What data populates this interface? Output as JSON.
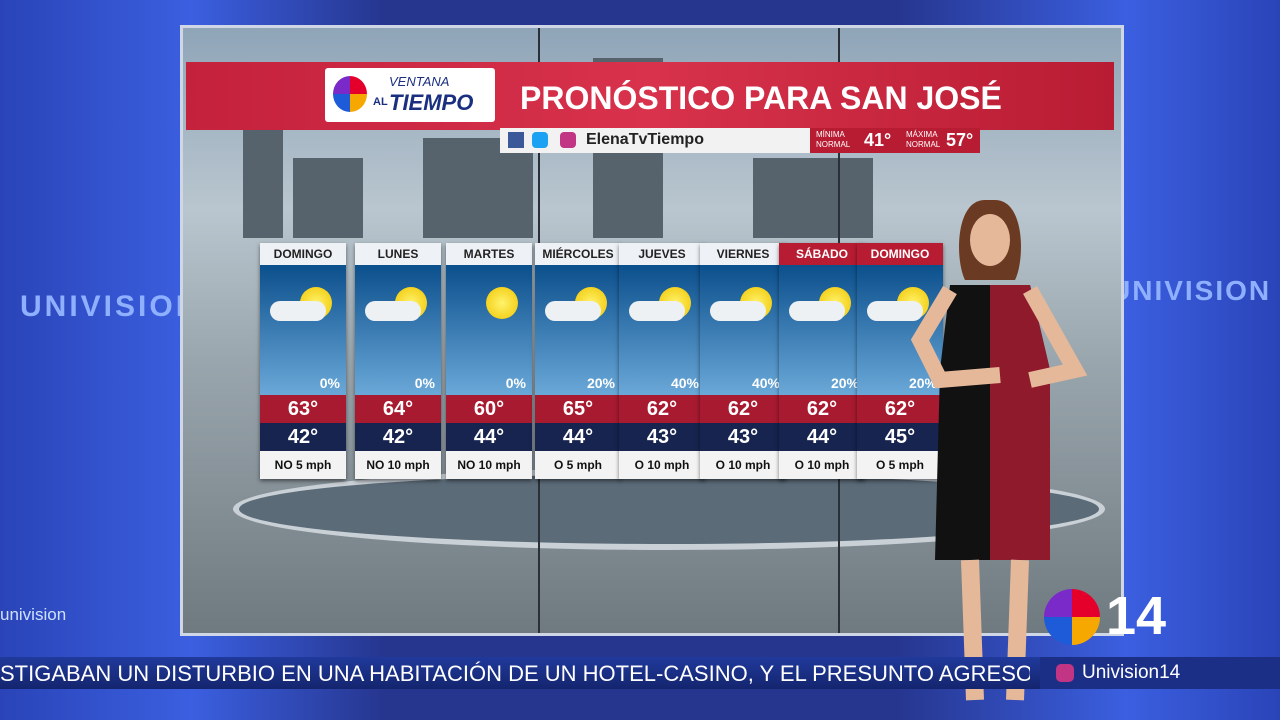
{
  "header": {
    "logo_top": "VENTANA",
    "logo_al": "AL",
    "logo_main": "TIEMPO",
    "title": "PRONÓSTICO PARA SAN JOSÉ",
    "social": "ElenaTvTiempo",
    "min_label": "MÍNIMA NORMAL",
    "min_value": "41°",
    "max_label": "MÁXIMA NORMAL",
    "max_value": "57°"
  },
  "days": [
    {
      "day": "DOMINGO",
      "precip": "0%",
      "high": "63°",
      "low": "42°",
      "wind": "NO 5 mph"
    },
    {
      "day": "LUNES",
      "precip": "0%",
      "high": "64°",
      "low": "42°",
      "wind": "NO 10 mph"
    },
    {
      "day": "MARTES",
      "precip": "0%",
      "high": "60°",
      "low": "44°",
      "wind": "NO 10 mph"
    },
    {
      "day": "MIÉRCOLES",
      "precip": "20%",
      "high": "65°",
      "low": "44°",
      "wind": "O 5 mph"
    },
    {
      "day": "JUEVES",
      "precip": "40%",
      "high": "62°",
      "low": "43°",
      "wind": "O 10 mph"
    },
    {
      "day": "VIERNES",
      "precip": "40%",
      "high": "62°",
      "low": "43°",
      "wind": "O 10 mph"
    },
    {
      "day": "SÁBADO",
      "precip": "20%",
      "high": "62°",
      "low": "44°",
      "wind": "O 10 mph"
    },
    {
      "day": "DOMINGO",
      "precip": "20%",
      "high": "62°",
      "low": "45°",
      "wind": "O 5 mph"
    }
  ],
  "background": {
    "brand_left": "UNIVISION",
    "brand_right": "UNIVISION",
    "brand_small": "univision"
  },
  "station": {
    "number": "14",
    "handle": "Univision14"
  },
  "ticker": {
    "text": "STIGABAN UN DISTURBIO EN UNA HABITACIÓN DE UN HOTEL-CASINO, Y EL PRESUNTO AGRESO"
  }
}
